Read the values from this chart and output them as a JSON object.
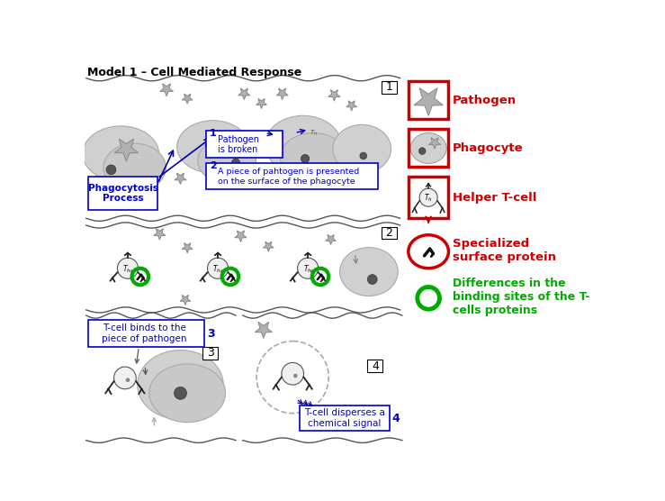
{
  "title": "Model 1 – Cell Mediated Response",
  "title_fontsize": 9,
  "bg_color": "#ffffff",
  "label_phagocytosis": "Phagocytosis\nProcess",
  "label_pathogen_broken": "Pathogen\nis broken",
  "label_piece": "A piece of pahtogen is presented\non the surface of the phagocyte",
  "label_tcell_binds": "T-cell binds to the\npiece of pathogen",
  "label_tcell_disperses": "T-cell disperses a\nchemical signal",
  "blue_label_color": "#0000cc",
  "red_color": "#cc0000",
  "green_color": "#00aa00",
  "dark_color": "#222222",
  "gray_cell": "#cccccc",
  "gray_cell_edge": "#999999",
  "star_color": "#b0b0b0",
  "star_edge": "#888888",
  "nucleus_color": "#555555",
  "wave_color": "#555555",
  "tcell_fill": "#f0f0f0",
  "tcell_edge": "#555555",
  "dashed_color": "#aaaaaa"
}
